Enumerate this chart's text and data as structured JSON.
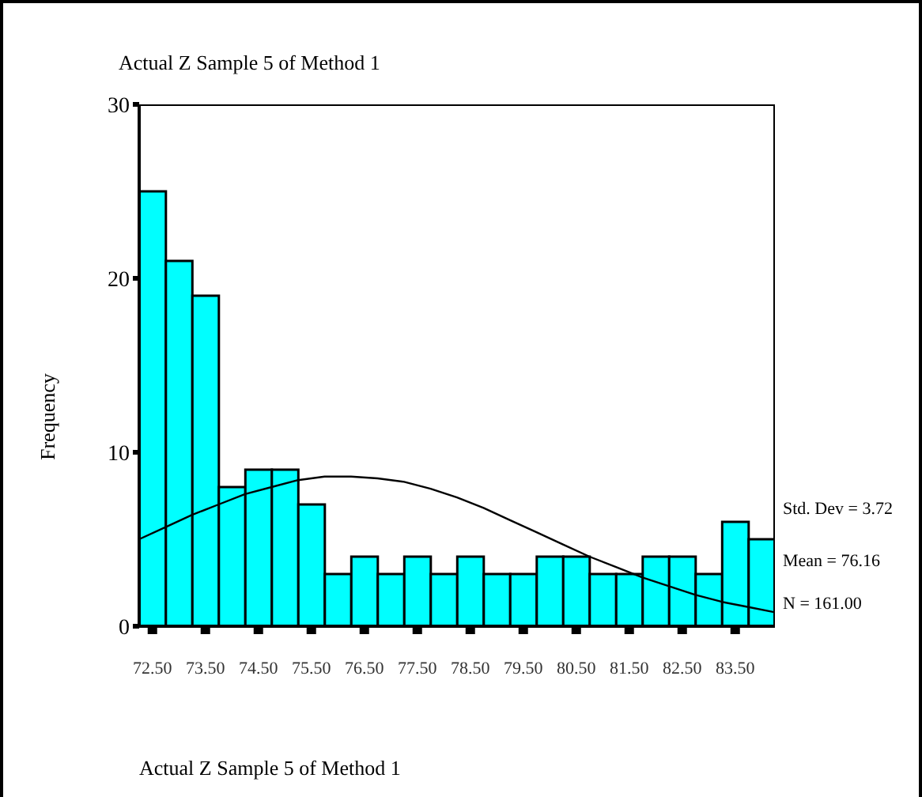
{
  "chart_data": {
    "type": "histogram",
    "title": "Actual Z Sample 5 of Method 1",
    "ylabel": "Frequency",
    "bins": [
      72.25,
      72.75,
      73.25,
      73.75,
      74.25,
      74.75,
      75.25,
      75.75,
      76.25,
      76.75,
      77.25,
      77.75,
      78.25,
      78.75,
      79.25,
      79.75,
      80.25,
      80.75,
      81.25,
      81.75,
      82.25,
      82.75,
      83.25,
      83.75,
      84.25
    ],
    "values": [
      25,
      21,
      19,
      8,
      9,
      9,
      7,
      3,
      4,
      3,
      4,
      3,
      4,
      3,
      3,
      4,
      4,
      3,
      3,
      4,
      4,
      3,
      6,
      5
    ],
    "color": "#00ffff",
    "series": [
      {
        "type": "line",
        "color": "#000000",
        "x": [
          72.25,
          72.75,
          73.25,
          73.75,
          74.25,
          74.75,
          75.25,
          75.75,
          76.25,
          76.75,
          77.25,
          77.75,
          78.25,
          78.75,
          79.25,
          79.75,
          80.25,
          80.75,
          81.25,
          81.75,
          82.25,
          82.75,
          83.25,
          83.75,
          84.25
        ],
        "values": [
          5.0,
          5.7,
          6.4,
          7.0,
          7.6,
          8.0,
          8.4,
          8.6,
          8.6,
          8.5,
          8.3,
          7.9,
          7.4,
          6.8,
          6.1,
          5.4,
          4.7,
          4.0,
          3.4,
          2.8,
          2.3,
          1.8,
          1.4,
          1.1,
          0.8
        ]
      }
    ],
    "marker": "none",
    "xlim": [
      72.25,
      84.25
    ],
    "xticks": [
      {
        "value": 72.5,
        "label": "72.50"
      },
      {
        "value": 73.5,
        "label": "73.50"
      },
      {
        "value": 74.5,
        "label": "74.50"
      },
      {
        "value": 75.5,
        "label": "75.50"
      },
      {
        "value": 76.5,
        "label": "76.50"
      },
      {
        "value": 77.5,
        "label": "77.50"
      },
      {
        "value": 78.5,
        "label": "78.50"
      },
      {
        "value": 79.5,
        "label": "79.50"
      },
      {
        "value": 80.5,
        "label": "80.50"
      },
      {
        "value": 81.5,
        "label": "81.50"
      },
      {
        "value": 82.5,
        "label": "82.50"
      },
      {
        "value": 83.5,
        "label": "83.50"
      }
    ],
    "ylim": [
      0,
      30
    ],
    "yticks": [
      0,
      10,
      20,
      30
    ],
    "grid": false,
    "legend": false,
    "annotations": [
      "Std. Dev = 3.72",
      "Mean = 76.16",
      "N = 161.00",
      "Actual Z Sample 5 of Method 1"
    ]
  }
}
